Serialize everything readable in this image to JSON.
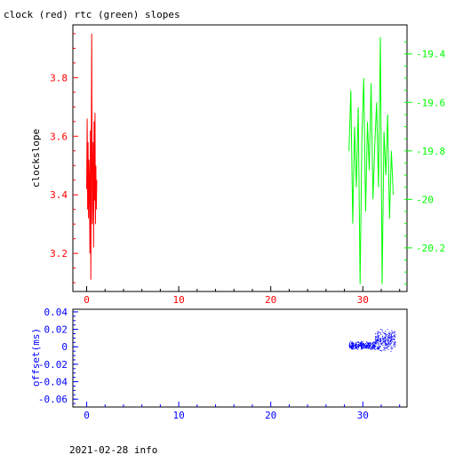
{
  "title": "clock (red) rtc (green) slopes",
  "footer": "2021-02-28 info",
  "chart_data": [
    {
      "type": "line",
      "name": "slopes-plot",
      "ylabel": "clockslope",
      "xlim": [
        -1.5,
        34.8
      ],
      "ylim_left": [
        3.07,
        3.98
      ],
      "ylim_right": [
        -20.38,
        -19.28
      ],
      "x_ticks": [
        0,
        10,
        20,
        30
      ],
      "y_ticks_left": [
        "3.2",
        "3.4",
        "3.6",
        "3.8"
      ],
      "y_ticks_right": [
        "-19.4",
        "-19.6",
        "-19.8",
        "-20",
        "-20.2"
      ],
      "colors": {
        "clock": "#ff0000",
        "rtc": "#00ff00"
      },
      "series": [
        {
          "axis": "left",
          "color": "#ff0000",
          "x": [
            0.0,
            0.05,
            0.1,
            0.15,
            0.2,
            0.25,
            0.3,
            0.35,
            0.4,
            0.45,
            0.5,
            0.55,
            0.6,
            0.65,
            0.7,
            0.75,
            0.8,
            0.85,
            0.9,
            0.95,
            1.0,
            1.05,
            1.1
          ],
          "y": [
            3.42,
            3.66,
            3.35,
            3.58,
            3.32,
            3.52,
            3.45,
            3.2,
            3.62,
            3.11,
            3.55,
            3.95,
            3.3,
            3.4,
            3.58,
            3.22,
            3.65,
            3.38,
            3.68,
            3.3,
            3.5,
            3.35,
            3.45
          ]
        },
        {
          "axis": "right",
          "color": "#00ff00",
          "x": [
            28.5,
            28.7,
            28.9,
            29.1,
            29.3,
            29.5,
            29.7,
            29.9,
            30.1,
            30.3,
            30.5,
            30.7,
            30.9,
            31.1,
            31.3,
            31.5,
            31.7,
            31.9,
            32.1,
            32.3,
            32.5,
            32.7,
            32.9,
            33.1,
            33.3
          ],
          "y": [
            -19.8,
            -19.55,
            -20.1,
            -19.7,
            -19.95,
            -19.62,
            -20.35,
            -19.75,
            -19.5,
            -20.05,
            -19.68,
            -19.88,
            -19.52,
            -20.0,
            -19.78,
            -19.6,
            -19.95,
            -19.33,
            -20.35,
            -19.72,
            -19.9,
            -19.65,
            -20.08,
            -19.8,
            -19.98
          ]
        }
      ]
    },
    {
      "type": "scatter",
      "name": "offset-plot",
      "ylabel": "offset(ms)",
      "xlim": [
        -1.5,
        34.8
      ],
      "ylim": [
        -0.069,
        0.043
      ],
      "x_ticks": [
        0,
        10,
        20,
        30
      ],
      "y_ticks": [
        "0.04",
        "0.02",
        "0",
        "-0.02",
        "-0.04",
        "-0.06"
      ],
      "color": "#0000ff",
      "segments": [
        {
          "x_start": 28.5,
          "x_end": 31.3,
          "center": 0.002,
          "spread": 0.005
        },
        {
          "x_start": 31.3,
          "x_end": 33.5,
          "center": 0.008,
          "spread": 0.014
        }
      ]
    }
  ]
}
